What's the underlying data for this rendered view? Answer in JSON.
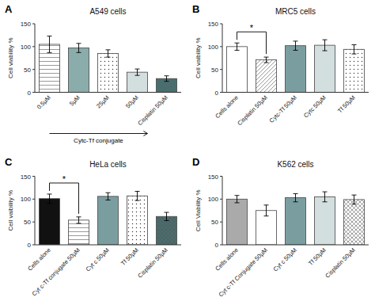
{
  "chart_data": [
    {
      "type": "bar",
      "label": "A",
      "title": "A549 cells",
      "ylabel": "Cell viability %",
      "categories": [
        "0.5µM",
        "5µM",
        "25µM",
        "50µM",
        "Cisplatin 50µM"
      ],
      "values": [
        105,
        97,
        85,
        44,
        30
      ],
      "errors": [
        18,
        10,
        8,
        7,
        6
      ],
      "colors": [
        "white",
        "#8aacab",
        "white",
        "#d3dede",
        "#4a6e6e"
      ],
      "ylim": [
        0,
        150
      ],
      "yticks": [
        0,
        50,
        100,
        150
      ],
      "grid": false,
      "annotations": [
        {
          "text": "Cytc-Tf conjugate",
          "from": "0.5µM",
          "to": "50µM",
          "shape": "arrow"
        }
      ]
    },
    {
      "type": "bar",
      "label": "B",
      "title": "MRC5 cells",
      "ylabel": "Cell vaibility %",
      "categories": [
        "Cells alone",
        "Cisplatin 50µM",
        "Cytc-Tf 50µM",
        "Cytc 50µM",
        "Tf 50µM"
      ],
      "values": [
        100,
        71,
        102,
        103,
        94
      ],
      "errors": [
        8,
        6,
        10,
        12,
        10
      ],
      "colors": [
        "white",
        "white",
        "#7a9ea0",
        "#d3dede",
        "white"
      ],
      "ylim": [
        0,
        150
      ],
      "yticks": [
        0,
        50,
        100,
        150
      ],
      "grid": false,
      "annotations": [
        {
          "text": "*",
          "from": "Cells alone",
          "to": "Cisplatin 50µM",
          "shape": "bracket"
        }
      ]
    },
    {
      "type": "bar",
      "label": "C",
      "title": "HeLa cells",
      "ylabel": "Cell vaibility %",
      "categories": [
        "Cells alone",
        "Cyt c-Tf conjugate 50µM",
        "Cyt c 50µM",
        "Tf 50µM",
        "Cisplatin 50µM"
      ],
      "values": [
        101,
        54,
        106,
        107,
        62
      ],
      "errors": [
        10,
        7,
        8,
        10,
        9
      ],
      "colors": [
        "#111111",
        "white",
        "#7a9ea0",
        "white",
        "#4a6e6e"
      ],
      "ylim": [
        0,
        150
      ],
      "yticks": [
        0,
        50,
        100,
        150
      ],
      "grid": false,
      "annotations": [
        {
          "text": "*",
          "from": "Cells alone",
          "to": "Cyt c-Tf conjugate 50µM",
          "shape": "bracket"
        }
      ]
    },
    {
      "type": "bar",
      "label": "D",
      "title": "K562 cells",
      "ylabel": "Cell Viability %",
      "categories": [
        "Cells alone",
        "Cyt c-Tf Conjugate 50µM",
        "Cyt c 50µM",
        "Tf 50µM",
        "Cisplatin 50µM"
      ],
      "values": [
        100,
        75,
        103,
        105,
        99
      ],
      "errors": [
        8,
        12,
        9,
        11,
        10
      ],
      "colors": [
        "#aaaaaa",
        "white",
        "#7a9ea0",
        "#d3dede",
        "white"
      ],
      "ylim": [
        0,
        150
      ],
      "yticks": [
        0,
        50,
        100,
        150
      ],
      "grid": false,
      "annotations": []
    }
  ]
}
